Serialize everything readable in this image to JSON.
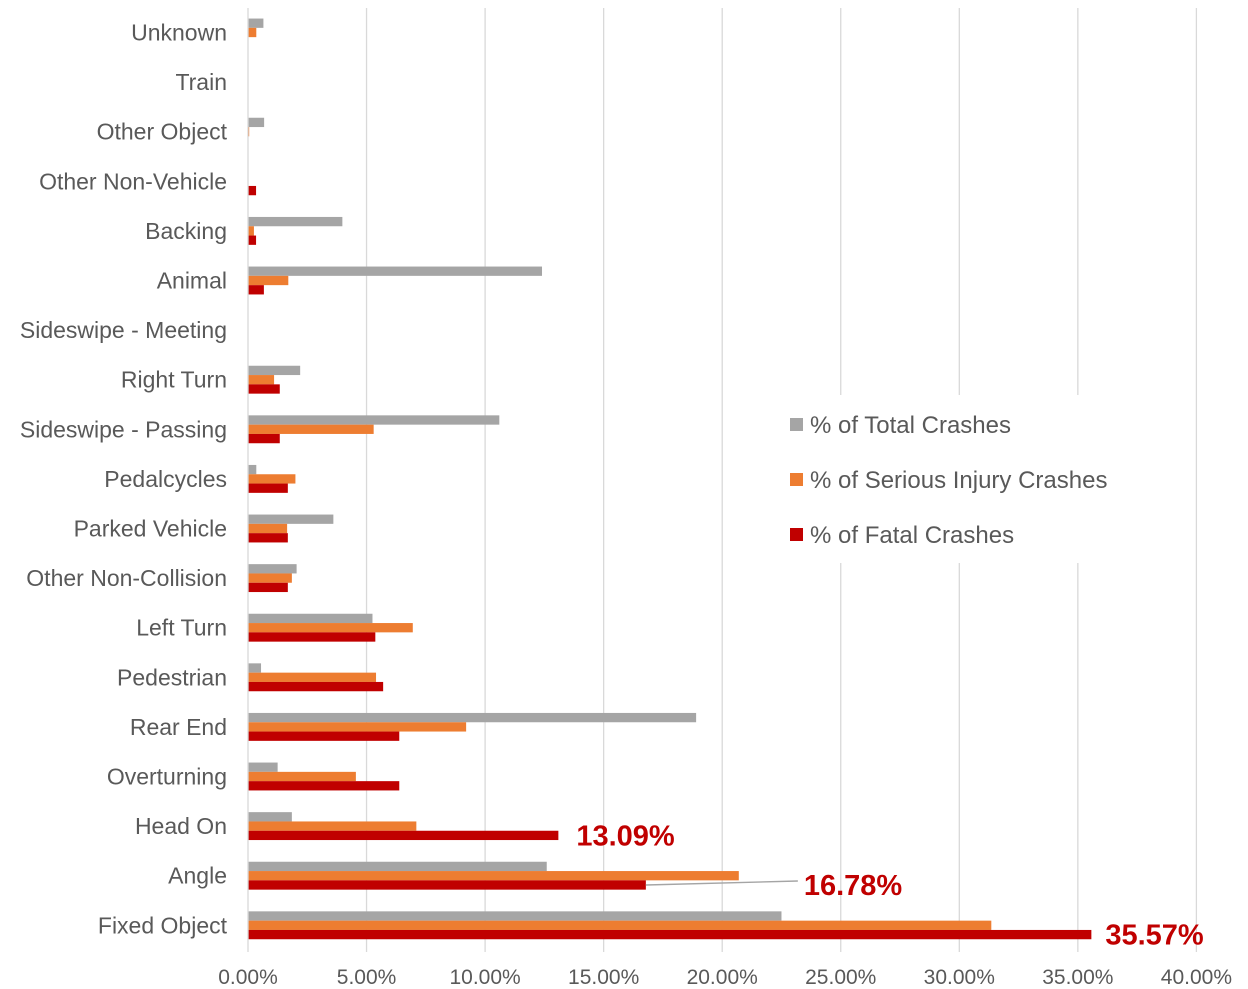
{
  "chart_data": {
    "type": "bar",
    "orientation": "horizontal",
    "categories": [
      "Unknown",
      "Train",
      "Other Object",
      "Other Non-Vehicle",
      "Backing",
      "Animal",
      "Sideswipe - Meeting",
      "Right Turn",
      "Sideswipe - Passing",
      "Pedalcycles",
      "Parked Vehicle",
      "Other Non-Collision",
      "Left Turn",
      "Pedestrian",
      "Rear End",
      "Overturning",
      "Head On",
      "Angle",
      "Fixed Object"
    ],
    "series": [
      {
        "name": "% of Total Crashes",
        "color": "#a5a5a5",
        "values": [
          0.65,
          0,
          0.68,
          0,
          3.98,
          12.4,
          0,
          2.2,
          10.6,
          0.35,
          3.6,
          2.05,
          5.25,
          0.55,
          18.9,
          1.25,
          1.85,
          12.6,
          22.5
        ]
      },
      {
        "name": "% of Serious Injury Crashes",
        "color": "#ed7d31",
        "values": [
          0.35,
          0,
          0.05,
          0,
          0.25,
          1.7,
          0,
          1.1,
          5.3,
          2.0,
          1.65,
          1.85,
          6.95,
          5.4,
          9.2,
          4.55,
          7.1,
          20.7,
          31.35
        ]
      },
      {
        "name": "% of Fatal Crashes",
        "color": "#c00000",
        "values": [
          0,
          0,
          0,
          0.34,
          0.34,
          0.67,
          0,
          1.34,
          1.34,
          1.68,
          1.68,
          1.68,
          5.37,
          5.7,
          6.38,
          6.38,
          13.09,
          16.78,
          35.57
        ]
      }
    ],
    "data_labels": [
      {
        "category": "Head On",
        "series": "% of Fatal Crashes",
        "text": "13.09%"
      },
      {
        "category": "Angle",
        "series": "% of Fatal Crashes",
        "text": "16.78%"
      },
      {
        "category": "Fixed Object",
        "series": "% of Fatal Crashes",
        "text": "35.57%"
      }
    ],
    "xlim": [
      0,
      40
    ],
    "x_ticks": [
      "0.00%",
      "5.00%",
      "10.00%",
      "15.00%",
      "20.00%",
      "25.00%",
      "30.00%",
      "35.00%",
      "40.00%"
    ],
    "grid": "vertical",
    "legend_position": "right"
  }
}
